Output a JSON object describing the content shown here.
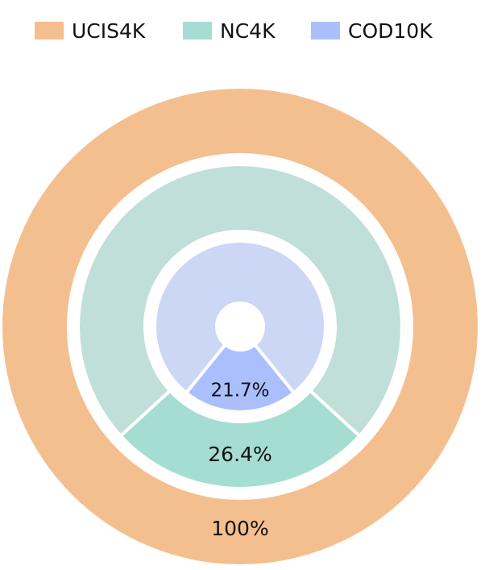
{
  "chart_data": {
    "type": "pie",
    "series": [
      {
        "name": "UCIS4K",
        "values": [
          100
        ],
        "label": "100%",
        "color": "#F4BF8F"
      },
      {
        "name": "NC4K",
        "values": [
          26.4
        ],
        "label": "26.4%",
        "color": "#A5DDD3"
      },
      {
        "name": "COD10K",
        "values": [
          21.7
        ],
        "label": "21.7%",
        "color": "#ABBFFC"
      }
    ],
    "legend": {
      "position": "top",
      "items": [
        "UCIS4K",
        "NC4K",
        "COD10K"
      ]
    },
    "faded_colors": {
      "NC4K": "#C1DFD9",
      "COD10K": "#CCD6F5"
    }
  }
}
